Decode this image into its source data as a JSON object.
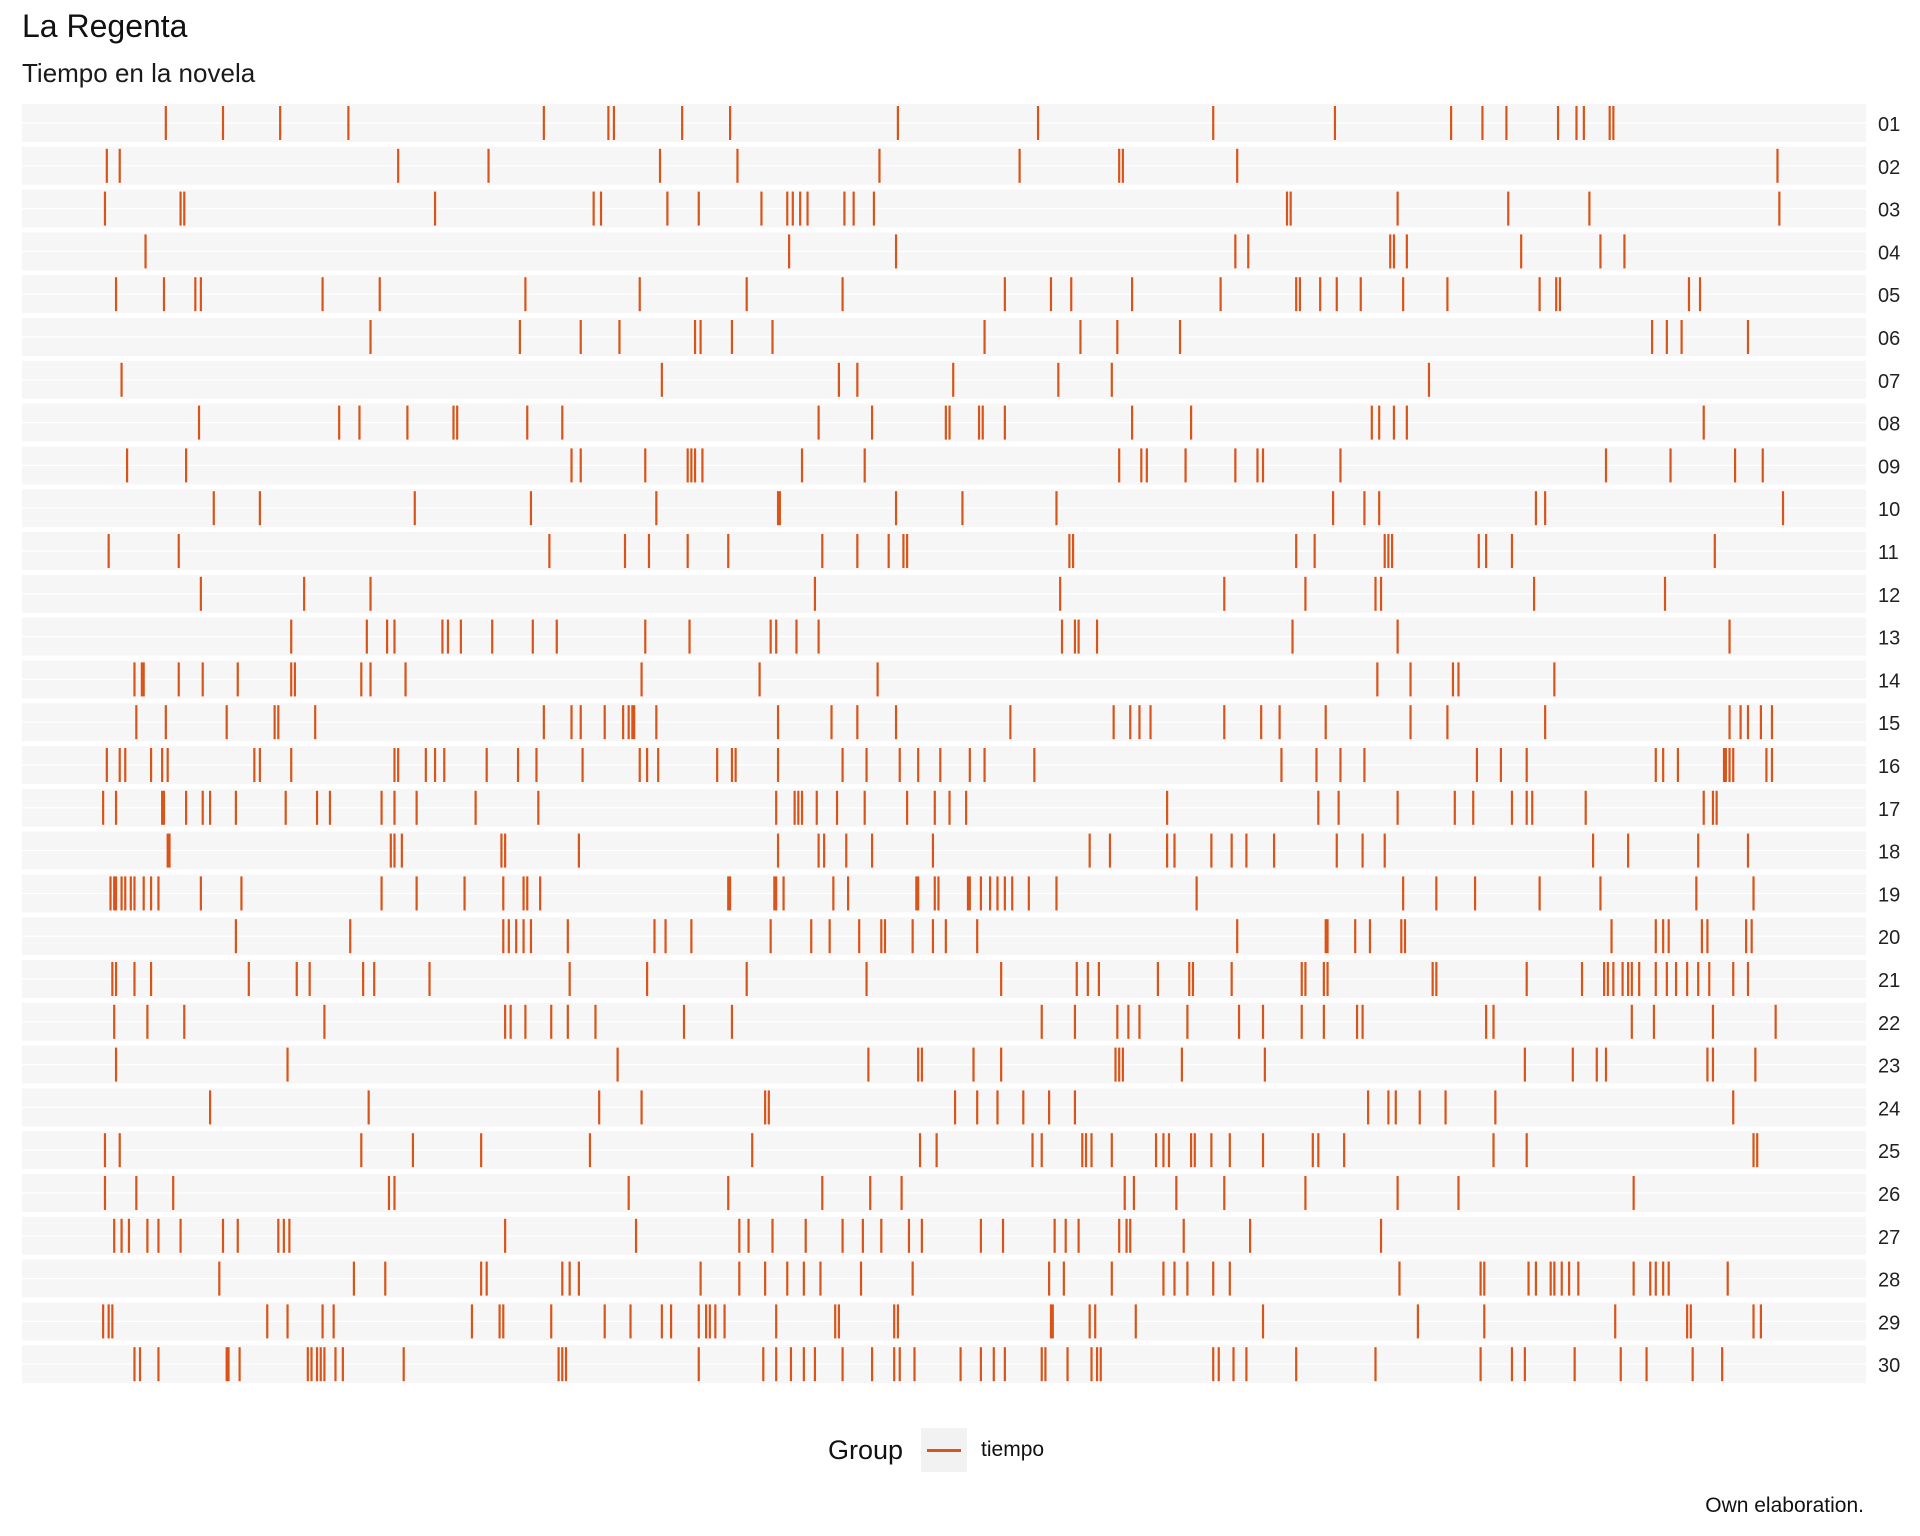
{
  "title": "La Regenta",
  "subtitle": "Tiempo en la novela",
  "caption": "Own elaboration.",
  "legend": {
    "title": "Group",
    "label": "tiempo"
  },
  "colors": {
    "mark": "#d95419",
    "strip": "#f6f6f6"
  },
  "chart_data": {
    "type": "strip",
    "xlim": [
      0,
      100
    ],
    "rows": [
      "01",
      "02",
      "03",
      "04",
      "05",
      "06",
      "07",
      "08",
      "09",
      "10",
      "11",
      "12",
      "13",
      "14",
      "15",
      "16",
      "17",
      "18",
      "19",
      "20",
      "21",
      "22",
      "23",
      "24",
      "25",
      "26",
      "27",
      "28",
      "29",
      "30"
    ],
    "series": [
      {
        "name": "tiempo",
        "values": [
          [
            7.8,
            10.9,
            14,
            17.7,
            28.3,
            31.8,
            32.1,
            35.8,
            38.4,
            47.5,
            55.1,
            64.6,
            71.2,
            77.5,
            79.2,
            80.5,
            83.3,
            84.3,
            84.7,
            86.1,
            86.3
          ],
          [
            4.6,
            5.3,
            20.4,
            25.3,
            34.6,
            38.8,
            46.5,
            54.1,
            59.5,
            59.7,
            65.9,
            95.2
          ],
          [
            4.5,
            8.6,
            8.8,
            22.4,
            31,
            31.4,
            35,
            36.7,
            40.1,
            41.5,
            41.8,
            42.2,
            42.6,
            44.6,
            45.1,
            46.2,
            68.6,
            68.8,
            74.6,
            80.6,
            85,
            95.3
          ],
          [
            6.7,
            41.6,
            47.4,
            65.8,
            66.5,
            74.2,
            74.4,
            75.1,
            81.3,
            85.6,
            86.9
          ],
          [
            5.1,
            7.7,
            9.4,
            9.7,
            16.3,
            19.4,
            27.3,
            33.5,
            39.3,
            44.5,
            53.3,
            55.8,
            56.9,
            60.2,
            65,
            69.1,
            69.3,
            70.4,
            71.3,
            72.6,
            74.9,
            77.3,
            82.3,
            83.2,
            83.4,
            90.4,
            91
          ],
          [
            18.9,
            27,
            30.3,
            32.4,
            36.5,
            36.8,
            38.5,
            40.7,
            52.2,
            57.4,
            59.4,
            62.8,
            88.4,
            89.2,
            90,
            93.6
          ],
          [
            5.4,
            34.7,
            44.3,
            45.3,
            50.5,
            56.2,
            59.1,
            76.3
          ],
          [
            9.6,
            17.2,
            18.3,
            20.9,
            23.4,
            23.6,
            27.4,
            29.3,
            43.2,
            46.1,
            50.1,
            50.3,
            51.9,
            52.1,
            53.3,
            60.2,
            63.4,
            73.2,
            73.6,
            74.4,
            75.1,
            91.2
          ],
          [
            5.7,
            8.9,
            29.8,
            30.3,
            33.8,
            36.1,
            36.3,
            36.5,
            36.9,
            42.3,
            45.7,
            59.5,
            60.7,
            61,
            63.1,
            65.8,
            67,
            67.3,
            71.5,
            85.9,
            89.4,
            92.9,
            94.4
          ],
          [
            10.4,
            12.9,
            21.3,
            27.6,
            34.4,
            41,
            41.1,
            47.4,
            51,
            56.1,
            71.1,
            72.8,
            73.6,
            82.1,
            82.6,
            95.5
          ],
          [
            4.7,
            8.5,
            28.6,
            32.7,
            34,
            36.1,
            38.3,
            43.4,
            45.3,
            47,
            47.8,
            48,
            56.8,
            57,
            69.1,
            70.1,
            73.9,
            74.1,
            74.3,
            79,
            79.4,
            80.8,
            91.8
          ],
          [
            9.7,
            15.3,
            18.9,
            43,
            56.3,
            65.2,
            69.6,
            73.4,
            73.7,
            82,
            89.1
          ],
          [
            14.6,
            18.7,
            19.8,
            20.2,
            22.8,
            23.1,
            23.8,
            25.5,
            27.7,
            29,
            33.8,
            36.2,
            40.6,
            40.9,
            42,
            43.2,
            56.4,
            57.1,
            57.3,
            58.3,
            68.9,
            74.6,
            92.6
          ],
          [
            6.1,
            6.5,
            6.6,
            8.5,
            9.8,
            11.7,
            14.6,
            14.8,
            18.4,
            18.9,
            20.8,
            33.6,
            40,
            46.4,
            73.5,
            75.3,
            77.6,
            77.9,
            83.1
          ],
          [
            6.2,
            7.8,
            11.1,
            13.7,
            13.9,
            15.9,
            28.3,
            29.8,
            30.3,
            31.6,
            32.6,
            32.9,
            33.1,
            33.2,
            34.4,
            41,
            43.9,
            45.3,
            47.4,
            53.6,
            59.2,
            60.1,
            60.6,
            61.2,
            65.2,
            67.2,
            68.2,
            70.7,
            75.3,
            77.3,
            82.6,
            92.6,
            93.2,
            93.6,
            94.3,
            94.9
          ],
          [
            4.6,
            5.3,
            5.6,
            7,
            7.6,
            7.9,
            12.6,
            12.9,
            14.6,
            20.2,
            20.4,
            21.9,
            22.4,
            22.9,
            25.2,
            26.9,
            27.9,
            30.4,
            33.5,
            33.9,
            34.5,
            37.7,
            38.5,
            38.7,
            41,
            44.5,
            45.8,
            47.6,
            48.6,
            49.8,
            51.4,
            52.2,
            54.9,
            68.3,
            70.2,
            71.5,
            72.8,
            78.9,
            80.2,
            81.6,
            88.6,
            89,
            89.8,
            92.3,
            92.4,
            92.6,
            92.8,
            94.6,
            94.9
          ],
          [
            4.4,
            5.1,
            7.6,
            7.7,
            8.9,
            9.8,
            10.2,
            11.6,
            14.3,
            16,
            16.7,
            19.5,
            20.2,
            21.4,
            24.6,
            28,
            40.9,
            41.9,
            42.1,
            42.3,
            43.1,
            44.2,
            45.7,
            48,
            49.5,
            50.3,
            51.2,
            62.1,
            70.3,
            71.4,
            74.6,
            77.7,
            78.7,
            80.8,
            81.6,
            81.9,
            84.8,
            91.2,
            91.7,
            91.9
          ],
          [
            7.9,
            8,
            20,
            20.2,
            20.6,
            26,
            26.2,
            30.2,
            41,
            43.2,
            43.5,
            44.7,
            46.1,
            49.4,
            57.9,
            59,
            62.1,
            62.5,
            64.5,
            65.6,
            66.4,
            67.9,
            71.3,
            72.7,
            73.9,
            85.2,
            87.1,
            90.9,
            93.6
          ],
          [
            4.8,
            5,
            5.1,
            5.4,
            5.6,
            5.9,
            6.1,
            6.6,
            7,
            7.4,
            9.7,
            11.9,
            19.5,
            21.4,
            24,
            26.1,
            27.2,
            27.4,
            28.1,
            38.3,
            38.4,
            40.8,
            40.9,
            41.3,
            44,
            44.8,
            48.5,
            48.6,
            49.5,
            49.7,
            51.3,
            51.4,
            52,
            52.5,
            52.9,
            53.3,
            53.7,
            54.6,
            56.1,
            63.7,
            74.9,
            76.7,
            78.8,
            82.3,
            85.6,
            90.8,
            93.9
          ],
          [
            11.6,
            17.8,
            26.1,
            26.4,
            26.8,
            27.2,
            27.6,
            29.6,
            34.3,
            34.9,
            36.3,
            40.6,
            42.8,
            43.8,
            45.4,
            46.6,
            46.8,
            48.3,
            49.4,
            50.1,
            51.8,
            65.9,
            70.7,
            70.8,
            72.3,
            73.1,
            74.8,
            75,
            86.2,
            88.6,
            89,
            89.3,
            91.1,
            91.4,
            93.5,
            93.8
          ],
          [
            4.9,
            5.1,
            6.1,
            7,
            12.3,
            14.9,
            15.6,
            18.5,
            19.1,
            22.1,
            29.7,
            33.9,
            39.3,
            45.8,
            53.1,
            57.2,
            57.8,
            58.4,
            61.6,
            63.3,
            63.5,
            65.6,
            69.4,
            69.6,
            70.6,
            70.8,
            76.5,
            76.7,
            81.6,
            84.6,
            85.8,
            86,
            86.3,
            86.8,
            87.1,
            87.3,
            87.7,
            88.6,
            89.2,
            89.7,
            90.3,
            90.9,
            91.5,
            92.8,
            93.6
          ],
          [
            5,
            6.8,
            8.8,
            16.4,
            26.2,
            26.5,
            27.3,
            28.7,
            29.6,
            31.1,
            35.9,
            38.5,
            55.3,
            57.1,
            59.4,
            60,
            60.6,
            63.2,
            66,
            67.3,
            69.4,
            70.6,
            72.4,
            72.7,
            79.4,
            79.8,
            87.3,
            88.5,
            91.7,
            95.1
          ],
          [
            5.1,
            14.4,
            32.3,
            45.9,
            48.6,
            48.8,
            51.6,
            53.1,
            59.3,
            59.5,
            59.7,
            62.9,
            67.4,
            81.5,
            84.1,
            85.4,
            85.9,
            91.4,
            91.7,
            94
          ],
          [
            10.2,
            18.8,
            31.3,
            33.6,
            40.3,
            40.5,
            50.6,
            51.8,
            52.9,
            54.3,
            55.7,
            57.1,
            73,
            74.1,
            74.5,
            75.8,
            77.2,
            79.9,
            92.8
          ],
          [
            4.5,
            5.3,
            18.4,
            21.2,
            24.9,
            30.8,
            39.6,
            48.7,
            49.6,
            54.8,
            55.3,
            57.5,
            57.7,
            58,
            59.1,
            61.5,
            61.9,
            62.2,
            63.4,
            63.6,
            64.5,
            65.5,
            67.3,
            70,
            70.3,
            71.7,
            79.8,
            81.6,
            93.9,
            94.1
          ],
          [
            4.5,
            6.2,
            8.2,
            19.9,
            20.2,
            32.9,
            38.3,
            43.4,
            46,
            47.7,
            59.8,
            60.3,
            62.6,
            65.2,
            69.6,
            74.6,
            77.9,
            87.4
          ],
          [
            5,
            5.4,
            5.8,
            6.8,
            7.4,
            8.6,
            10.9,
            11.7,
            13.9,
            14.2,
            14.5,
            26.2,
            33.3,
            38.9,
            39.4,
            40.7,
            42.5,
            44.5,
            45.6,
            46.6,
            48.1,
            48.8,
            52,
            53.2,
            56,
            56.6,
            57.3,
            59.5,
            59.9,
            60.1,
            63,
            66.6,
            73.7
          ],
          [
            10.7,
            18,
            19.7,
            24.9,
            25.2,
            29.3,
            29.7,
            30.2,
            36.8,
            38.9,
            40.3,
            41.5,
            42.4,
            43.3,
            45.5,
            48.3,
            55.7,
            56.5,
            59.1,
            61.9,
            62.5,
            63.2,
            64.6,
            65.5,
            74.7,
            79.1,
            79.3,
            81.7,
            82.1,
            82.9,
            83.1,
            83.5,
            83.9,
            84.4,
            87.4,
            88.3,
            88.6,
            89,
            89.3,
            92.5
          ],
          [
            4.4,
            4.7,
            4.9,
            13.3,
            14.4,
            16.3,
            16.9,
            24.4,
            25.9,
            26.1,
            28.7,
            31.6,
            33,
            34.7,
            35.2,
            36.7,
            37.1,
            37.3,
            37.6,
            38.1,
            40.9,
            44.1,
            44.3,
            47.3,
            47.5,
            55.8,
            55.9,
            57.9,
            58.2,
            60.4,
            67.3,
            75.7,
            79.3,
            86.4,
            90.3,
            90.5,
            93.9,
            94.3
          ],
          [
            6.1,
            6.4,
            7.4,
            11.1,
            11.2,
            11.8,
            15.5,
            15.7,
            16,
            16.2,
            16.4,
            17,
            17.4,
            20.7,
            29.1,
            29.3,
            29.5,
            36.7,
            40.2,
            40.9,
            41.7,
            42.4,
            43,
            44.5,
            46.1,
            47.3,
            47.6,
            48.4,
            50.9,
            52,
            52.7,
            53.3,
            55.3,
            55.5,
            56.7,
            58,
            58.3,
            58.5,
            64.6,
            64.9,
            65.7,
            66.4,
            69.1,
            73.4,
            79.1,
            80.8,
            81.5,
            84.2,
            86.7,
            88.1,
            90.6,
            92.2
          ]
        ]
      }
    ]
  }
}
